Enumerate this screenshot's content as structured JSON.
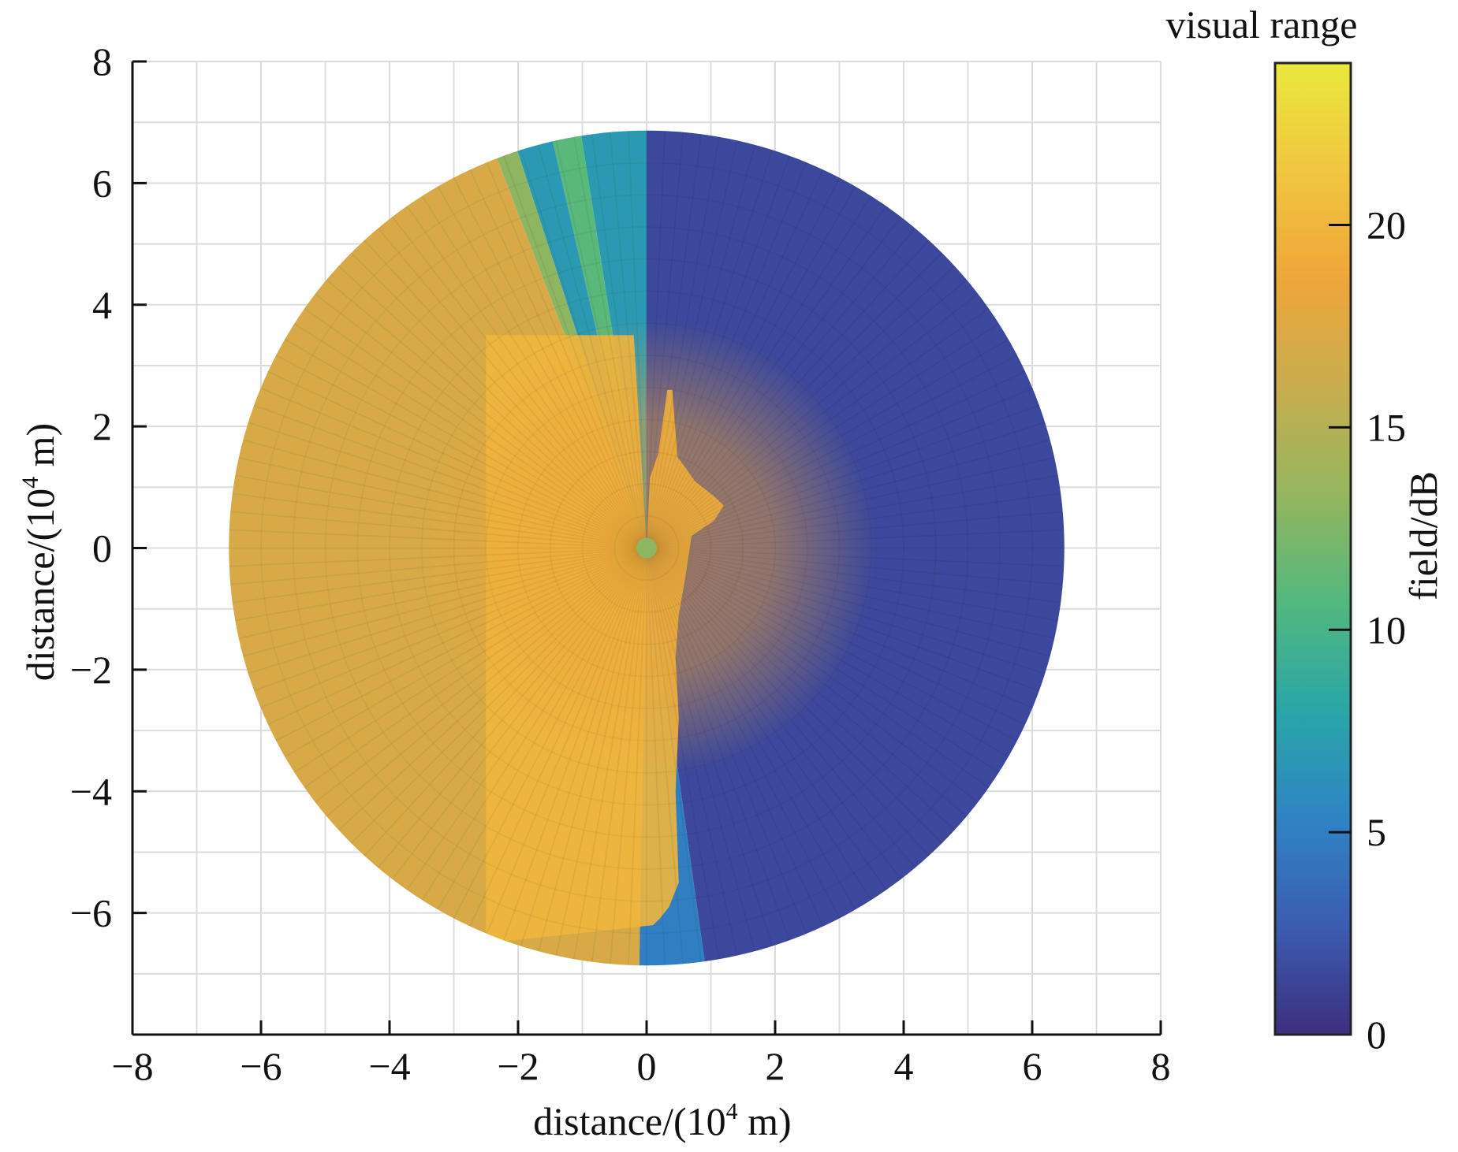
{
  "chart_data": {
    "type": "heatmap",
    "subtype": "polar coverage map",
    "title": "",
    "xlabel": {
      "pre": "distance/(10",
      "sup": "4",
      "post": " m)"
    },
    "ylabel": {
      "pre": "distance/(10",
      "sup": "4",
      "post": " m)"
    },
    "xlim": [
      -8,
      8
    ],
    "ylim": [
      -8,
      8
    ],
    "xticks": [
      -8,
      -6,
      -4,
      -2,
      0,
      2,
      4,
      6,
      8
    ],
    "yticks": [
      -6,
      -4,
      -2,
      0,
      2,
      4,
      6,
      8
    ],
    "grid": true,
    "coverage_radius": 6.5,
    "colorbar": {
      "title": "visual range",
      "label": "field/dB",
      "range": [
        0,
        24
      ],
      "ticks": [
        0,
        5,
        10,
        15,
        20
      ],
      "colormap": [
        "#3d2f7e",
        "#3b5cb2",
        "#2f84c4",
        "#2aa6a8",
        "#52b87e",
        "#95b65e",
        "#c8ad4f",
        "#efa63a",
        "#f1c640",
        "#eae83d"
      ]
    },
    "sectors": [
      {
        "from_deg": 90,
        "to_deg": 99,
        "value": 7
      },
      {
        "from_deg": 99,
        "to_deg": 103,
        "value": 11
      },
      {
        "from_deg": 103,
        "to_deg": 108,
        "value": 7
      },
      {
        "from_deg": 108,
        "to_deg": 111,
        "value": 13
      },
      {
        "from_deg": 111,
        "to_deg": 269,
        "value": 17
      },
      {
        "from_deg": 269,
        "to_deg": 278,
        "value": 5
      },
      {
        "from_deg": 278,
        "to_deg": 450,
        "value": 1.5
      }
    ],
    "inner_region": {
      "value": 20,
      "description": ""
    },
    "transmitter": {
      "x": 0,
      "y": 0,
      "value": 13
    }
  }
}
